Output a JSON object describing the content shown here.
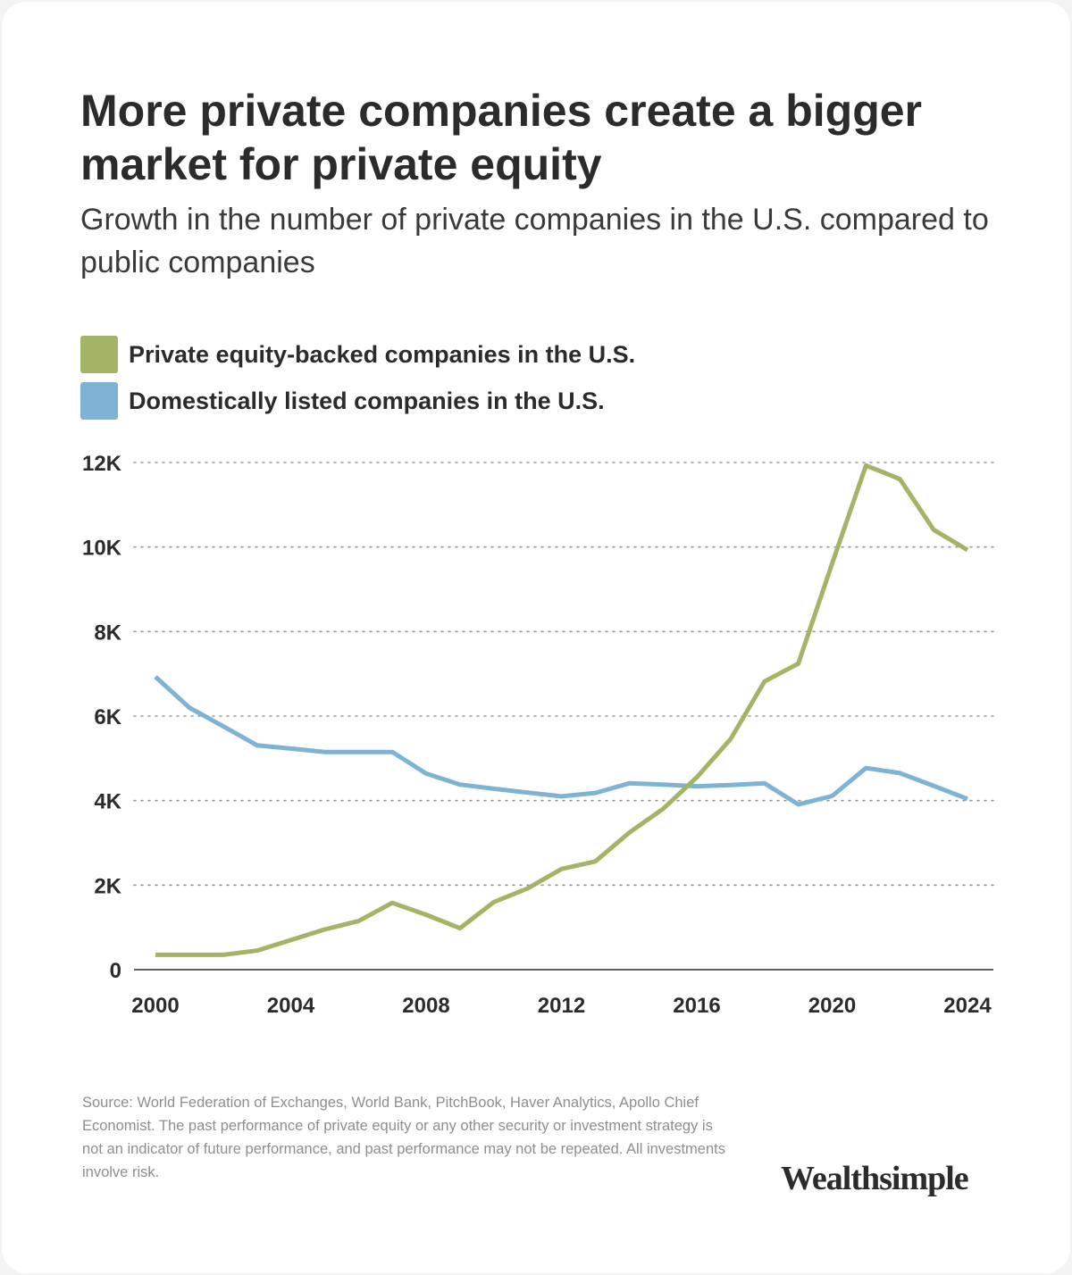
{
  "title": "More private companies create a bigger market for private equity",
  "subtitle": "Growth in the number of private companies in the U.S. compared to public companies",
  "source": "Source: World Federation of Exchanges, World Bank, PitchBook, Haver Analytics, Apollo Chief Economist. The past performance of private equity or any other security or investment strategy is not an indicator of future performance, and past performance may not be repeated. All investments involve risk.",
  "logo": "Wealthsimple",
  "chart_data": {
    "type": "line",
    "x": [
      2000,
      2001,
      2002,
      2003,
      2004,
      2005,
      2006,
      2007,
      2008,
      2009,
      2010,
      2011,
      2012,
      2013,
      2014,
      2015,
      2016,
      2017,
      2018,
      2019,
      2020,
      2021,
      2022,
      2023,
      2024
    ],
    "series": [
      {
        "name": "Private equity-backed companies in the U.S.",
        "color": "#a3b466",
        "values": [
          350,
          350,
          350,
          450,
          700,
          950,
          1150,
          1580,
          1300,
          980,
          1600,
          1920,
          2380,
          2560,
          3240,
          3800,
          4550,
          5460,
          6820,
          7240,
          9610,
          11930,
          11610,
          10410,
          9930
        ]
      },
      {
        "name": "Domestically listed companies in the U.S.",
        "color": "#7fb3d3",
        "values": [
          6930,
          6200,
          5760,
          5310,
          5230,
          5150,
          5150,
          5150,
          4640,
          4380,
          4280,
          4190,
          4100,
          4180,
          4410,
          4380,
          4340,
          4370,
          4410,
          3910,
          4110,
          4770,
          4650,
          4350,
          4040
        ]
      }
    ],
    "xlabel": "",
    "ylabel": "",
    "ylim": [
      0,
      12000
    ],
    "y_ticks": [
      0,
      2000,
      4000,
      6000,
      8000,
      10000,
      12000
    ],
    "y_tick_labels": [
      "0",
      "2K",
      "4K",
      "6K",
      "8K",
      "10K",
      "12K"
    ],
    "x_ticks": [
      2000,
      2004,
      2008,
      2012,
      2016,
      2020,
      2024
    ],
    "x_tick_labels": [
      "2000",
      "2004",
      "2008",
      "2012",
      "2016",
      "2020",
      "2024"
    ],
    "grid": "horizontal dotted",
    "legend": "top-left"
  }
}
